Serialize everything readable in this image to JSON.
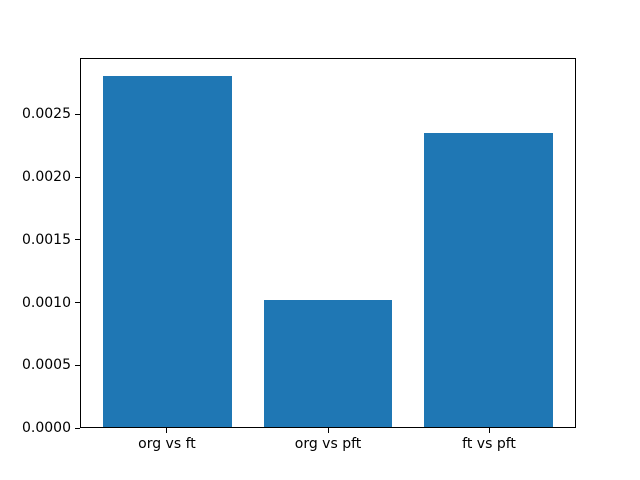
{
  "chart_data": {
    "type": "bar",
    "categories": [
      "org vs ft",
      "org vs pft",
      "ft vs pft"
    ],
    "values": [
      0.00281,
      0.00102,
      0.00236
    ],
    "title": "",
    "xlabel": "",
    "ylabel": "",
    "ylim": [
      0,
      0.00295
    ],
    "yticks": [
      {
        "value": 0.0,
        "label": "0.0000"
      },
      {
        "value": 0.0005,
        "label": "0.0005"
      },
      {
        "value": 0.001,
        "label": "0.0010"
      },
      {
        "value": 0.0015,
        "label": "0.0015"
      },
      {
        "value": 0.002,
        "label": "0.0020"
      },
      {
        "value": 0.0025,
        "label": "0.0025"
      }
    ],
    "grid": false,
    "legend": "none",
    "bar_color": "#1f77b4",
    "spine_color": "#000000",
    "background_color": "#ffffff"
  }
}
